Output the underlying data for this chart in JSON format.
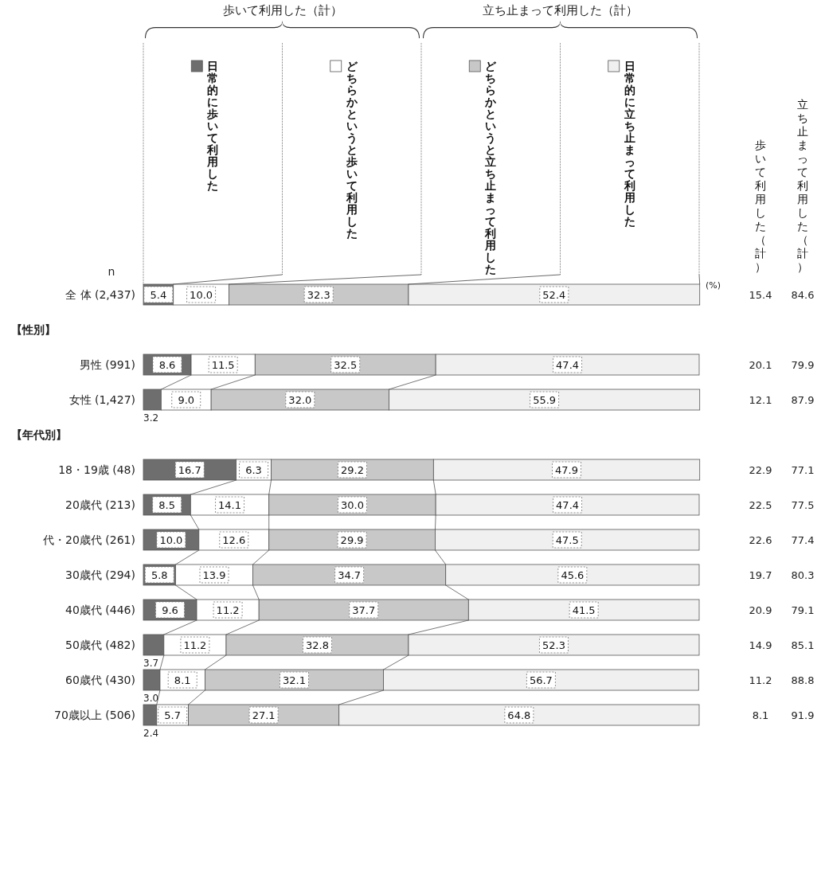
{
  "chart_data": [
    {
      "type": "bar",
      "orientation": "horizontal",
      "stacked": true,
      "xlim": [
        0,
        100
      ],
      "categories": [
        "全 体 (2,437)",
        null,
        "男性 (991)",
        "女性 (1,427)",
        null,
        "18・19歳 (48)",
        "20歳代 (213)",
        "代・20歳代 (261)",
        "30歳代 (294)",
        "40歳代 (446)",
        "50歳代 (482)",
        "60歳代 (430)",
        "70歳以上 (506)"
      ],
      "series": [
        {
          "name": "日常的に歩いて利用した",
          "color": "#6e6e6e",
          "values": [
            5.4,
            null,
            8.6,
            3.2,
            null,
            16.7,
            8.5,
            10.0,
            5.8,
            9.6,
            3.7,
            3.0,
            2.4
          ],
          "value_labels": [
            "5.4",
            null,
            "8.6",
            "3.2",
            null,
            "16.7",
            "8.5",
            "10.0",
            "5.8",
            "9.6",
            "3.7",
            "3.0",
            "2.4"
          ]
        },
        {
          "name": "どちらかというと歩いて利用した",
          "color": "#ffffff",
          "values": [
            10.0,
            null,
            11.5,
            9.0,
            null,
            6.3,
            14.1,
            12.6,
            13.9,
            11.2,
            11.2,
            8.1,
            5.7
          ],
          "value_labels": [
            "10.0",
            null,
            "11.5",
            "9.0",
            null,
            "6.3",
            "14.1",
            "12.6",
            "13.9",
            "11.2",
            "11.2",
            "8.1",
            "5.7"
          ]
        },
        {
          "name": "どちらかというと立ち止まって利用した",
          "color": "#c8c8c8",
          "values": [
            32.3,
            null,
            32.5,
            32.0,
            null,
            29.2,
            30.0,
            29.9,
            34.7,
            37.7,
            32.8,
            32.1,
            27.1
          ],
          "value_labels": [
            "32.3",
            null,
            "32.5",
            "32.0",
            null,
            "29.2",
            "30.0",
            "29.9",
            "34.7",
            "37.7",
            "32.8",
            "32.1",
            "27.1"
          ]
        },
        {
          "name": "日常的に立ち止まって利用した",
          "color": "#f0f0f0",
          "values": [
            52.4,
            null,
            47.4,
            55.9,
            null,
            47.9,
            47.4,
            47.5,
            45.6,
            41.5,
            52.3,
            56.7,
            64.8
          ],
          "value_labels": [
            "52.4",
            null,
            "47.4",
            "55.9",
            null,
            "47.9",
            "47.4",
            "47.5",
            "45.6",
            "41.5",
            "52.3",
            "56.7",
            "64.8"
          ]
        }
      ],
      "annotations": [
        "n",
        "(%)",
        "【性別】",
        "【年代別】",
        "歩いて利用した（計）",
        "立ち止まって利用した（計）"
      ]
    },
    {
      "type": "other",
      "annotations": [
        "歩いて利用した（計）",
        "立ち止まって利用した（計）",
        "15.4",
        "84.6",
        "20.1",
        "79.9",
        "12.1",
        "87.9",
        "22.9",
        "77.1",
        "22.5",
        "77.5",
        "22.6",
        "77.4",
        "19.7",
        "80.3",
        "20.9",
        "79.1",
        "14.9",
        "85.1",
        "11.2",
        "88.8",
        "8.1",
        "91.9"
      ]
    }
  ]
}
